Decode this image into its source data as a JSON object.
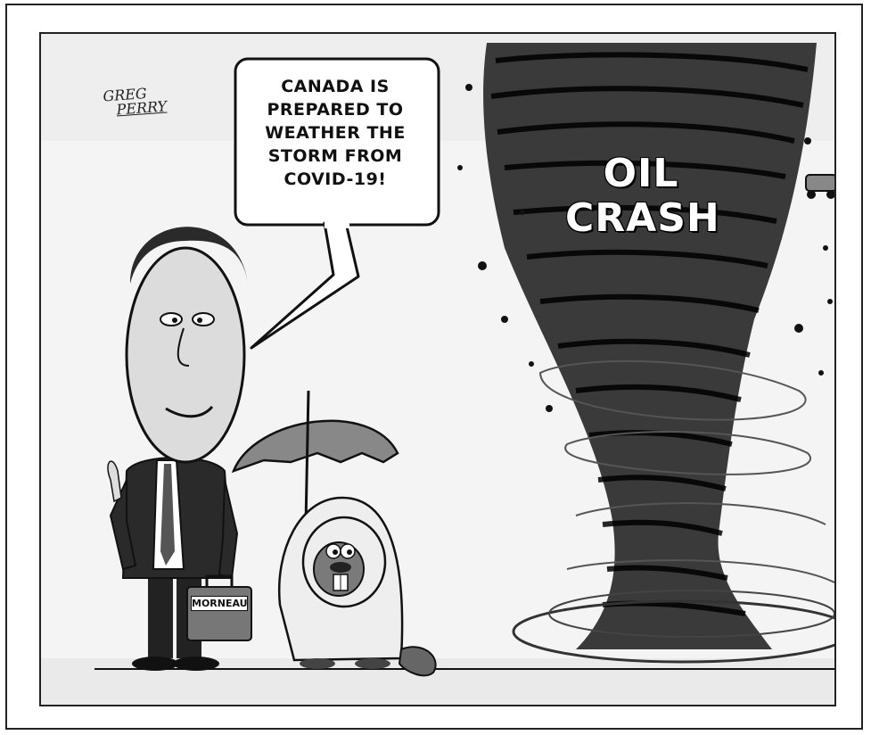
{
  "cartoon": {
    "signature": [
      "GREG",
      "PERRY"
    ],
    "speech_bubble_lines": [
      "CANADA IS",
      "PREPARED TO",
      "WEATHER THE",
      "STORM FROM",
      "COVID-19!"
    ],
    "tornado_label_lines": [
      "OIL",
      "CRASH"
    ],
    "briefcase_label": "MORNEAU"
  },
  "colors": {
    "ink": "#111111",
    "sky": "#f3f3f3",
    "suit": "#2a2a2a",
    "beaver_coat": "#eeeeee",
    "tornado": "#1a1a1a"
  }
}
